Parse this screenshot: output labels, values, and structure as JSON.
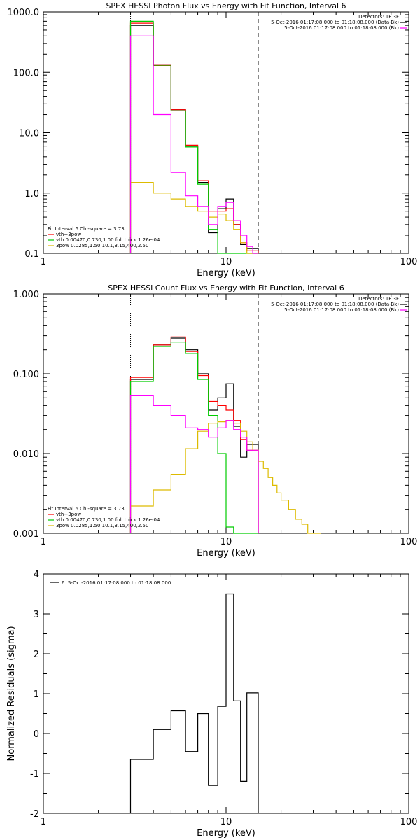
{
  "chart_data": [
    {
      "type": "line",
      "title": "SPEX HESSI Photon Flux vs Energy with Fit Function, Interval 6",
      "xlabel": "Energy (keV)",
      "ylabel": "",
      "xscale": "log",
      "yscale": "log",
      "xlim": [
        1,
        100
      ],
      "ylim": [
        0.1,
        1000
      ],
      "x_ticks": [
        "1",
        "10",
        "100"
      ],
      "y_ticks": [
        "0.1",
        "1.0",
        "10.0",
        "100.0",
        "1000.0"
      ],
      "vlines": [
        {
          "x": 3,
          "style": "dotted"
        },
        {
          "x": 15,
          "style": "dashed"
        }
      ],
      "legend_top": [
        "Detectors: 1F 3F",
        "5-Oct-2016 01:17:08.000 to 01:18:08.000 (Data-Bk)",
        "5-Oct-2016 01:17:08.000 to 01:18:08.000 (Bk)"
      ],
      "legend_bottom": [
        "Fit Interval 6   Chi-square = 3.73",
        "vth+3pow",
        "vth 0.00470,0.730,1.00  full thick 1.26e-04",
        "3pow 0.0285,1.50,10.1,3.15,400,2.50"
      ],
      "bin_edges": [
        3,
        3.5,
        4,
        5,
        6,
        7,
        8,
        9,
        10,
        11,
        12,
        13,
        14,
        15
      ],
      "series": [
        {
          "name": "5-Oct-2016 01:17:08.000 to 01:18:08.000 (Data-Bk)",
          "color": "#000000",
          "values": [
            600,
            600,
            130,
            24,
            6,
            1.5,
            0.22,
            0.55,
            0.8,
            0.3,
            0.14,
            0.12,
            0.12
          ]
        },
        {
          "name": "vth+3pow",
          "color": "#ff0000",
          "values": [
            650,
            650,
            130,
            24,
            6.2,
            1.6,
            0.5,
            0.5,
            0.55,
            0.3,
            0.15,
            0.11,
            0.11
          ]
        },
        {
          "name": "vth 0.00470,0.730,1.00  full thick 1.26e-04",
          "color": "#00cc00",
          "values": [
            700,
            700,
            128,
            23,
            5.8,
            1.4,
            0.25,
            0.1,
            0.1,
            0.1,
            0.1,
            0.1,
            0.1
          ]
        },
        {
          "name": "3pow 0.0285,1.50,10.1,3.15,400,2.50",
          "color": "#ddbb00",
          "values": [
            1.5,
            1.5,
            1.0,
            0.8,
            0.6,
            0.5,
            0.4,
            0.45,
            0.35,
            0.25,
            0.15,
            0.1,
            0.1
          ]
        },
        {
          "name": "5-Oct-2016 01:17:08.000 to 01:18:08.000 (Bk)",
          "color": "#ff00ff",
          "values": [
            400,
            400,
            20,
            2.2,
            0.9,
            0.6,
            0.3,
            0.6,
            0.7,
            0.35,
            0.2,
            0.13,
            0.1
          ]
        }
      ]
    },
    {
      "type": "line",
      "title": "SPEX HESSI Count Flux vs Energy with Fit Function, Interval 6",
      "xlabel": "Energy (keV)",
      "ylabel": "",
      "xscale": "log",
      "yscale": "log",
      "xlim": [
        1,
        100
      ],
      "ylim": [
        0.001,
        1
      ],
      "x_ticks": [
        "1",
        "10",
        "100"
      ],
      "y_ticks": [
        "0.001",
        "0.010",
        "0.100",
        "1.000"
      ],
      "vlines": [
        {
          "x": 3,
          "style": "dotted"
        },
        {
          "x": 15,
          "style": "dashed"
        }
      ],
      "legend_top": [
        "Detectors: 1F 3F",
        "5-Oct-2016 01:17:08.000 to 01:18:08.000 (Data-Bk)",
        "5-Oct-2016 01:17:08.000 to 01:18:08.000 (Bk)"
      ],
      "legend_bottom": [
        "Fit Interval 6   Chi-square = 3.73",
        "vth+3pow",
        "vth 0.00470,0.730,1.00  full thick 1.26e-04",
        "3pow 0.0285,1.50,10.1,3.15,400,2.50"
      ],
      "series": [
        {
          "name": "5-Oct-2016 01:17:08.000 to 01:18:08.000 (Data-Bk)",
          "color": "#000000",
          "bin_edges": [
            3,
            3.5,
            4,
            5,
            6,
            7,
            8,
            9,
            10,
            11,
            12,
            13,
            14,
            15
          ],
          "values": [
            0.085,
            0.085,
            0.23,
            0.28,
            0.2,
            0.1,
            0.035,
            0.05,
            0.075,
            0.022,
            0.009,
            0.013,
            0.013
          ]
        },
        {
          "name": "vth+3pow",
          "color": "#ff0000",
          "bin_edges": [
            3,
            3.5,
            4,
            5,
            6,
            7,
            8,
            9,
            10,
            11,
            12,
            13,
            14,
            15
          ],
          "values": [
            0.09,
            0.09,
            0.23,
            0.29,
            0.19,
            0.095,
            0.045,
            0.04,
            0.035,
            0.026,
            0.015,
            0.011,
            0.011
          ]
        },
        {
          "name": "vth 0.00470,0.730,1.00  full thick 1.26e-04",
          "color": "#00cc00",
          "bin_edges": [
            3,
            3.5,
            4,
            5,
            6,
            7,
            8,
            9,
            10,
            11,
            12,
            13,
            14,
            15
          ],
          "values": [
            0.08,
            0.08,
            0.22,
            0.25,
            0.18,
            0.085,
            0.03,
            0.01,
            0.0012,
            0.001,
            0.001,
            0.001,
            0.001
          ]
        },
        {
          "name": "3pow 0.0285,1.50,10.1,3.15,400,2.50",
          "color": "#ddbb00",
          "bin_edges": [
            3,
            3.5,
            4,
            5,
            6,
            7,
            8,
            9,
            10,
            11,
            12,
            13,
            14,
            15,
            16,
            17,
            18,
            19,
            20,
            22,
            24,
            26,
            28,
            30,
            33
          ],
          "values": [
            0.0022,
            0.0022,
            0.0035,
            0.0055,
            0.0115,
            0.019,
            0.024,
            0.025,
            0.026,
            0.024,
            0.019,
            0.014,
            0.011,
            0.008,
            0.0065,
            0.005,
            0.004,
            0.0032,
            0.0026,
            0.002,
            0.0015,
            0.0013,
            0.001,
            0.001
          ]
        },
        {
          "name": "5-Oct-2016 01:17:08.000 to 01:18:08.000 (Bk)",
          "color": "#ff00ff",
          "bin_edges": [
            3,
            3.5,
            4,
            5,
            6,
            7,
            8,
            9,
            10,
            11,
            12,
            13,
            14,
            15
          ],
          "values": [
            0.053,
            0.053,
            0.04,
            0.03,
            0.021,
            0.02,
            0.016,
            0.021,
            0.026,
            0.02,
            0.016,
            0.011,
            0.011
          ]
        }
      ]
    },
    {
      "type": "line",
      "title": "",
      "xlabel": "Energy (keV)",
      "ylabel": "Normalized Residuals (sigma)",
      "xscale": "log",
      "yscale": "linear",
      "xlim": [
        1,
        100
      ],
      "ylim": [
        -2,
        4
      ],
      "x_ticks": [
        "1",
        "10",
        "100"
      ],
      "y_ticks": [
        "-2",
        "-1",
        "0",
        "1",
        "2",
        "3",
        "4"
      ],
      "legend": [
        "6.  5-Oct-2016 01:17:08.000 to 01:18:08.000"
      ],
      "bin_edges": [
        3,
        4,
        5,
        6,
        7,
        8,
        9,
        10,
        11,
        12,
        13,
        14,
        15
      ],
      "series": [
        {
          "name": "6.  5-Oct-2016 01:17:08.000 to 01:18:08.000",
          "color": "#000000",
          "values": [
            -0.65,
            0.1,
            0.57,
            -0.45,
            0.5,
            -1.3,
            0.68,
            3.5,
            0.82,
            -1.2,
            1.02,
            1.02
          ]
        }
      ]
    }
  ]
}
